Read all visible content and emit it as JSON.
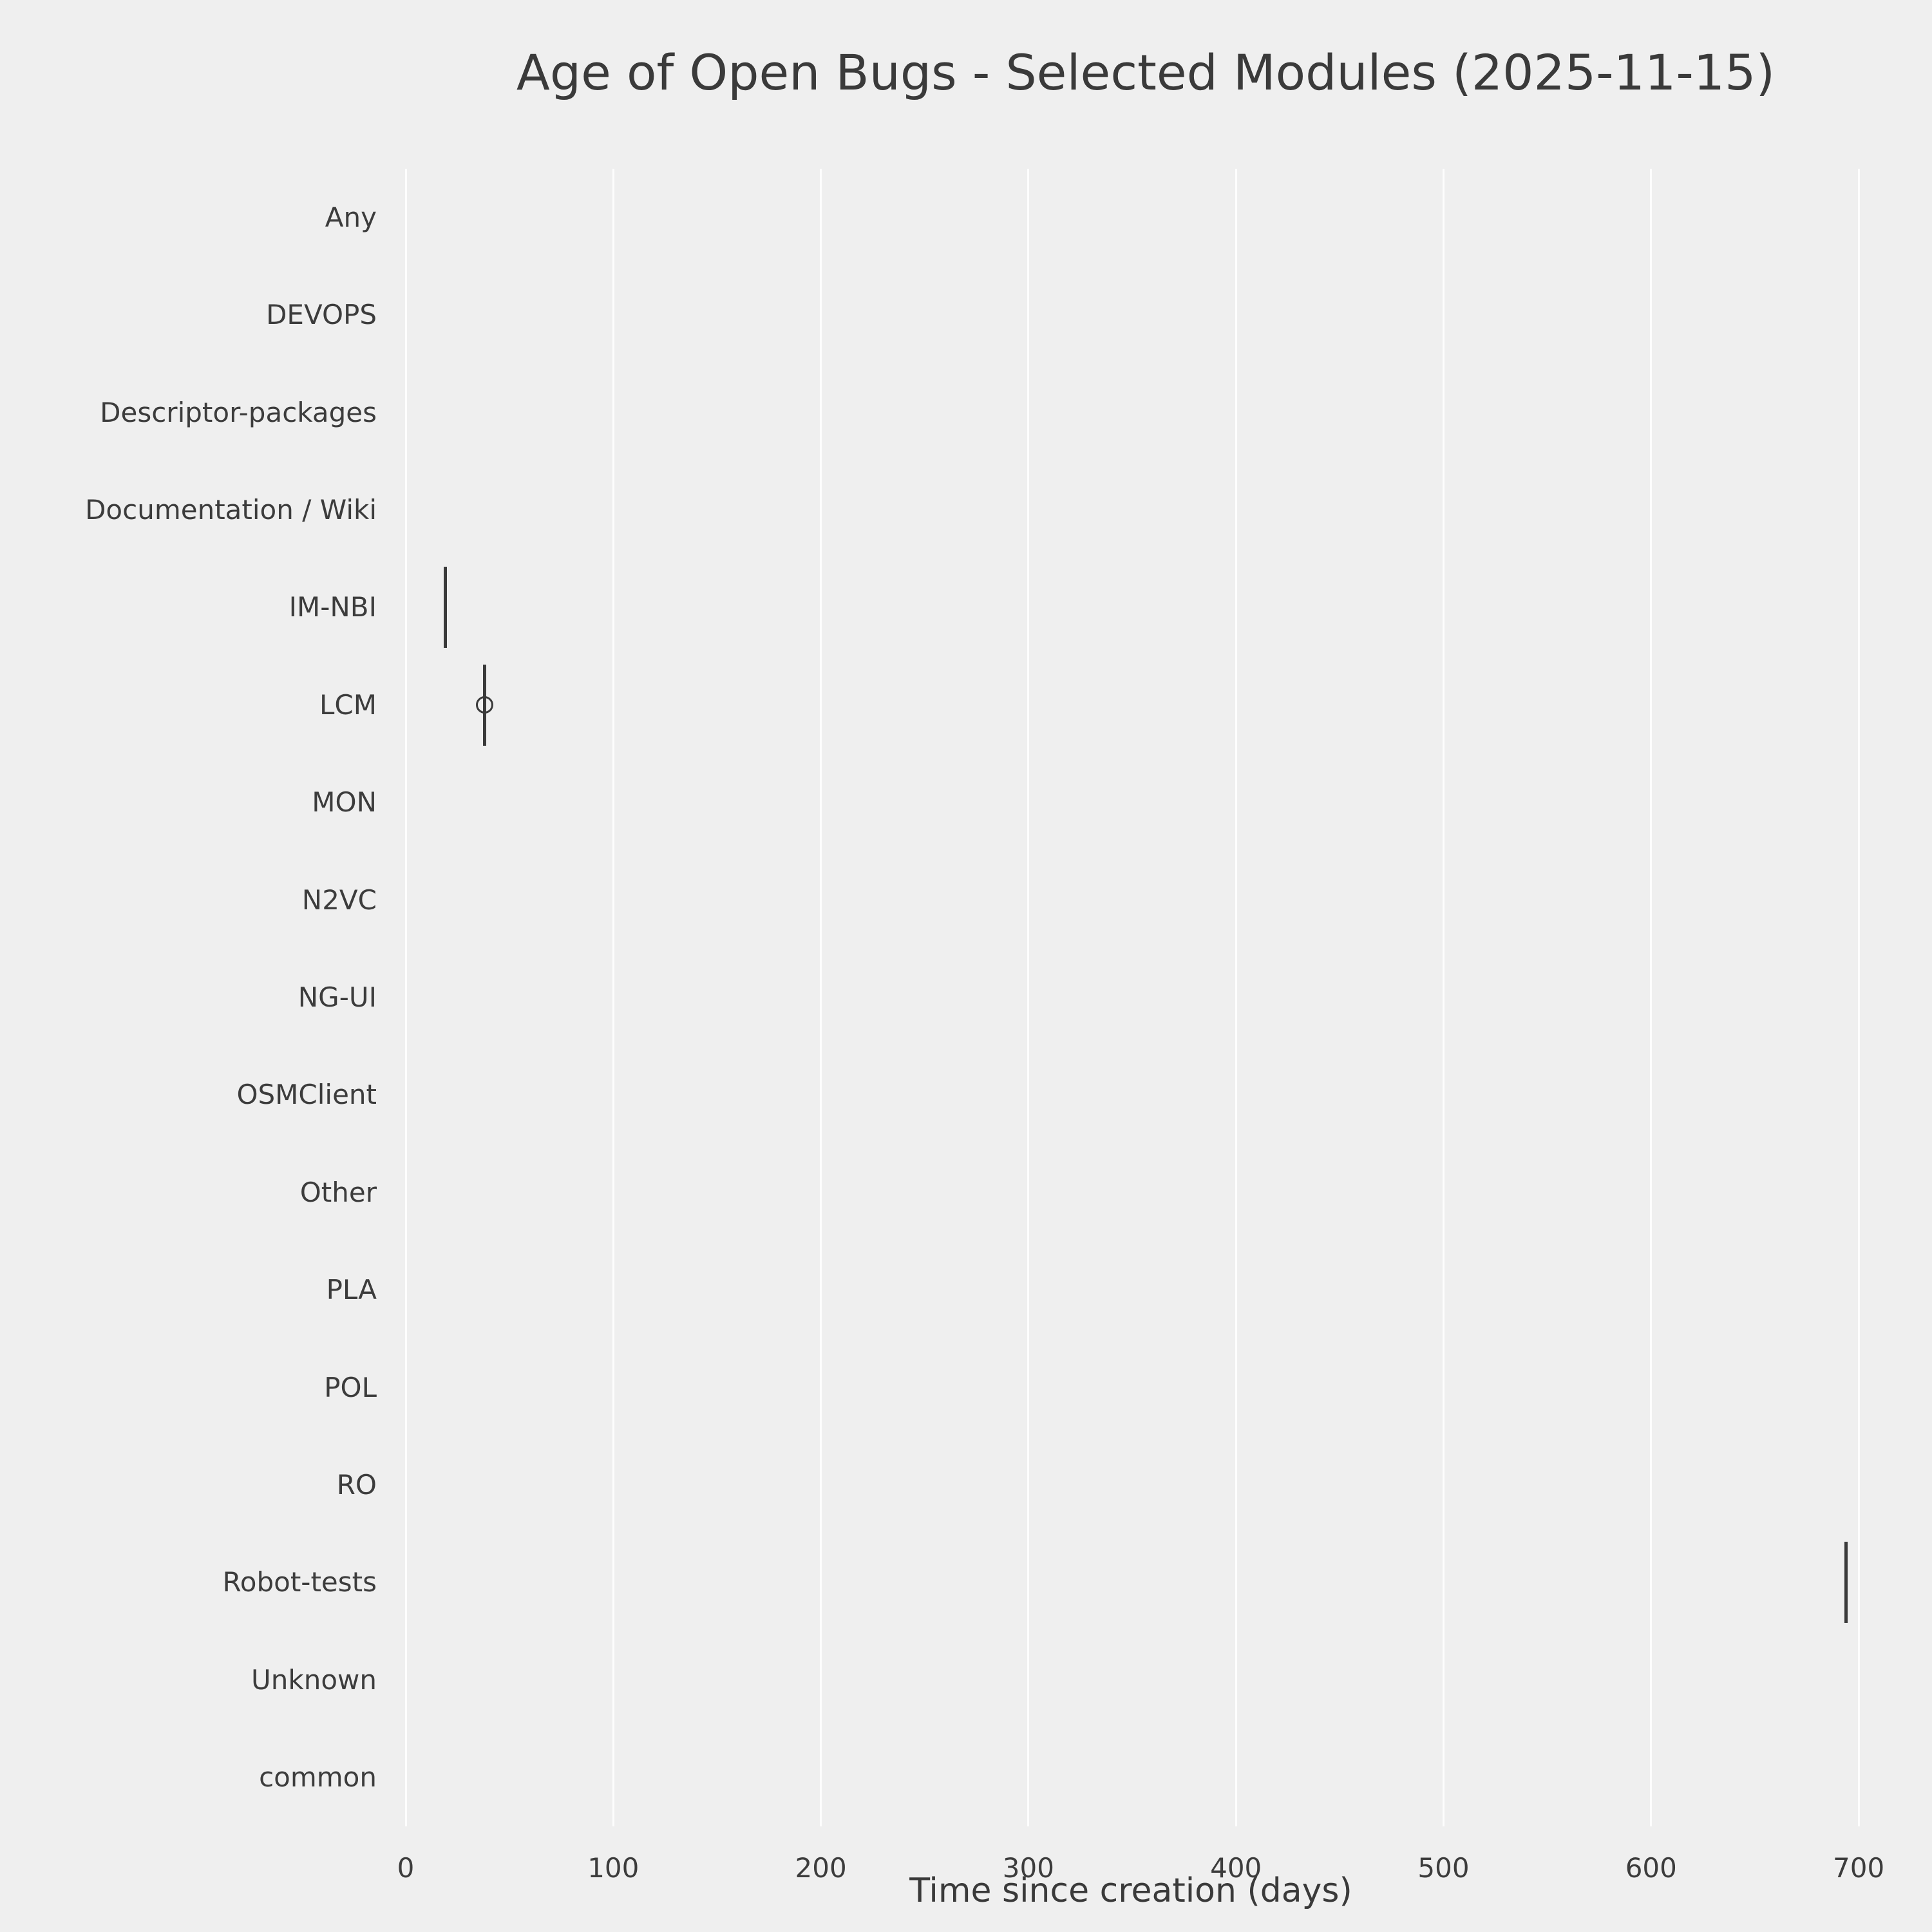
{
  "chart_data": {
    "type": "boxplot",
    "orientation": "horizontal",
    "title": "Age of Open Bugs - Selected Modules (2025-11-15)",
    "xlabel": "Time since creation (days)",
    "ylabel": "",
    "categories": [
      "Any",
      "DEVOPS",
      "Descriptor-packages",
      "Documentation / Wiki",
      "IM-NBI",
      "LCM",
      "MON",
      "N2VC",
      "NG-UI",
      "OSMClient",
      "Other",
      "PLA",
      "POL",
      "RO",
      "Robot-tests",
      "Unknown",
      "common"
    ],
    "xticks": [
      0,
      100,
      200,
      300,
      400,
      500,
      600,
      700
    ],
    "xlim": [
      -15,
      713
    ],
    "grid": true,
    "legend": false,
    "boxes": [
      {
        "module": "IM-NBI",
        "median": 19,
        "q1": 19,
        "q3": 19,
        "whisker_low": 19,
        "whisker_high": 19,
        "outliers": []
      },
      {
        "module": "LCM",
        "median": 38,
        "q1": 38,
        "q3": 38,
        "whisker_low": 38,
        "whisker_high": 38,
        "outliers": [
          38
        ]
      },
      {
        "module": "Robot-tests",
        "median": 694,
        "q1": 694,
        "q3": 694,
        "whisker_low": 694,
        "whisker_high": 694,
        "outliers": []
      }
    ],
    "colors": {
      "mark": "#3a3a3a",
      "grid": "#fdfdfd",
      "text": "#3c3c3c",
      "background": "#efefef"
    }
  }
}
